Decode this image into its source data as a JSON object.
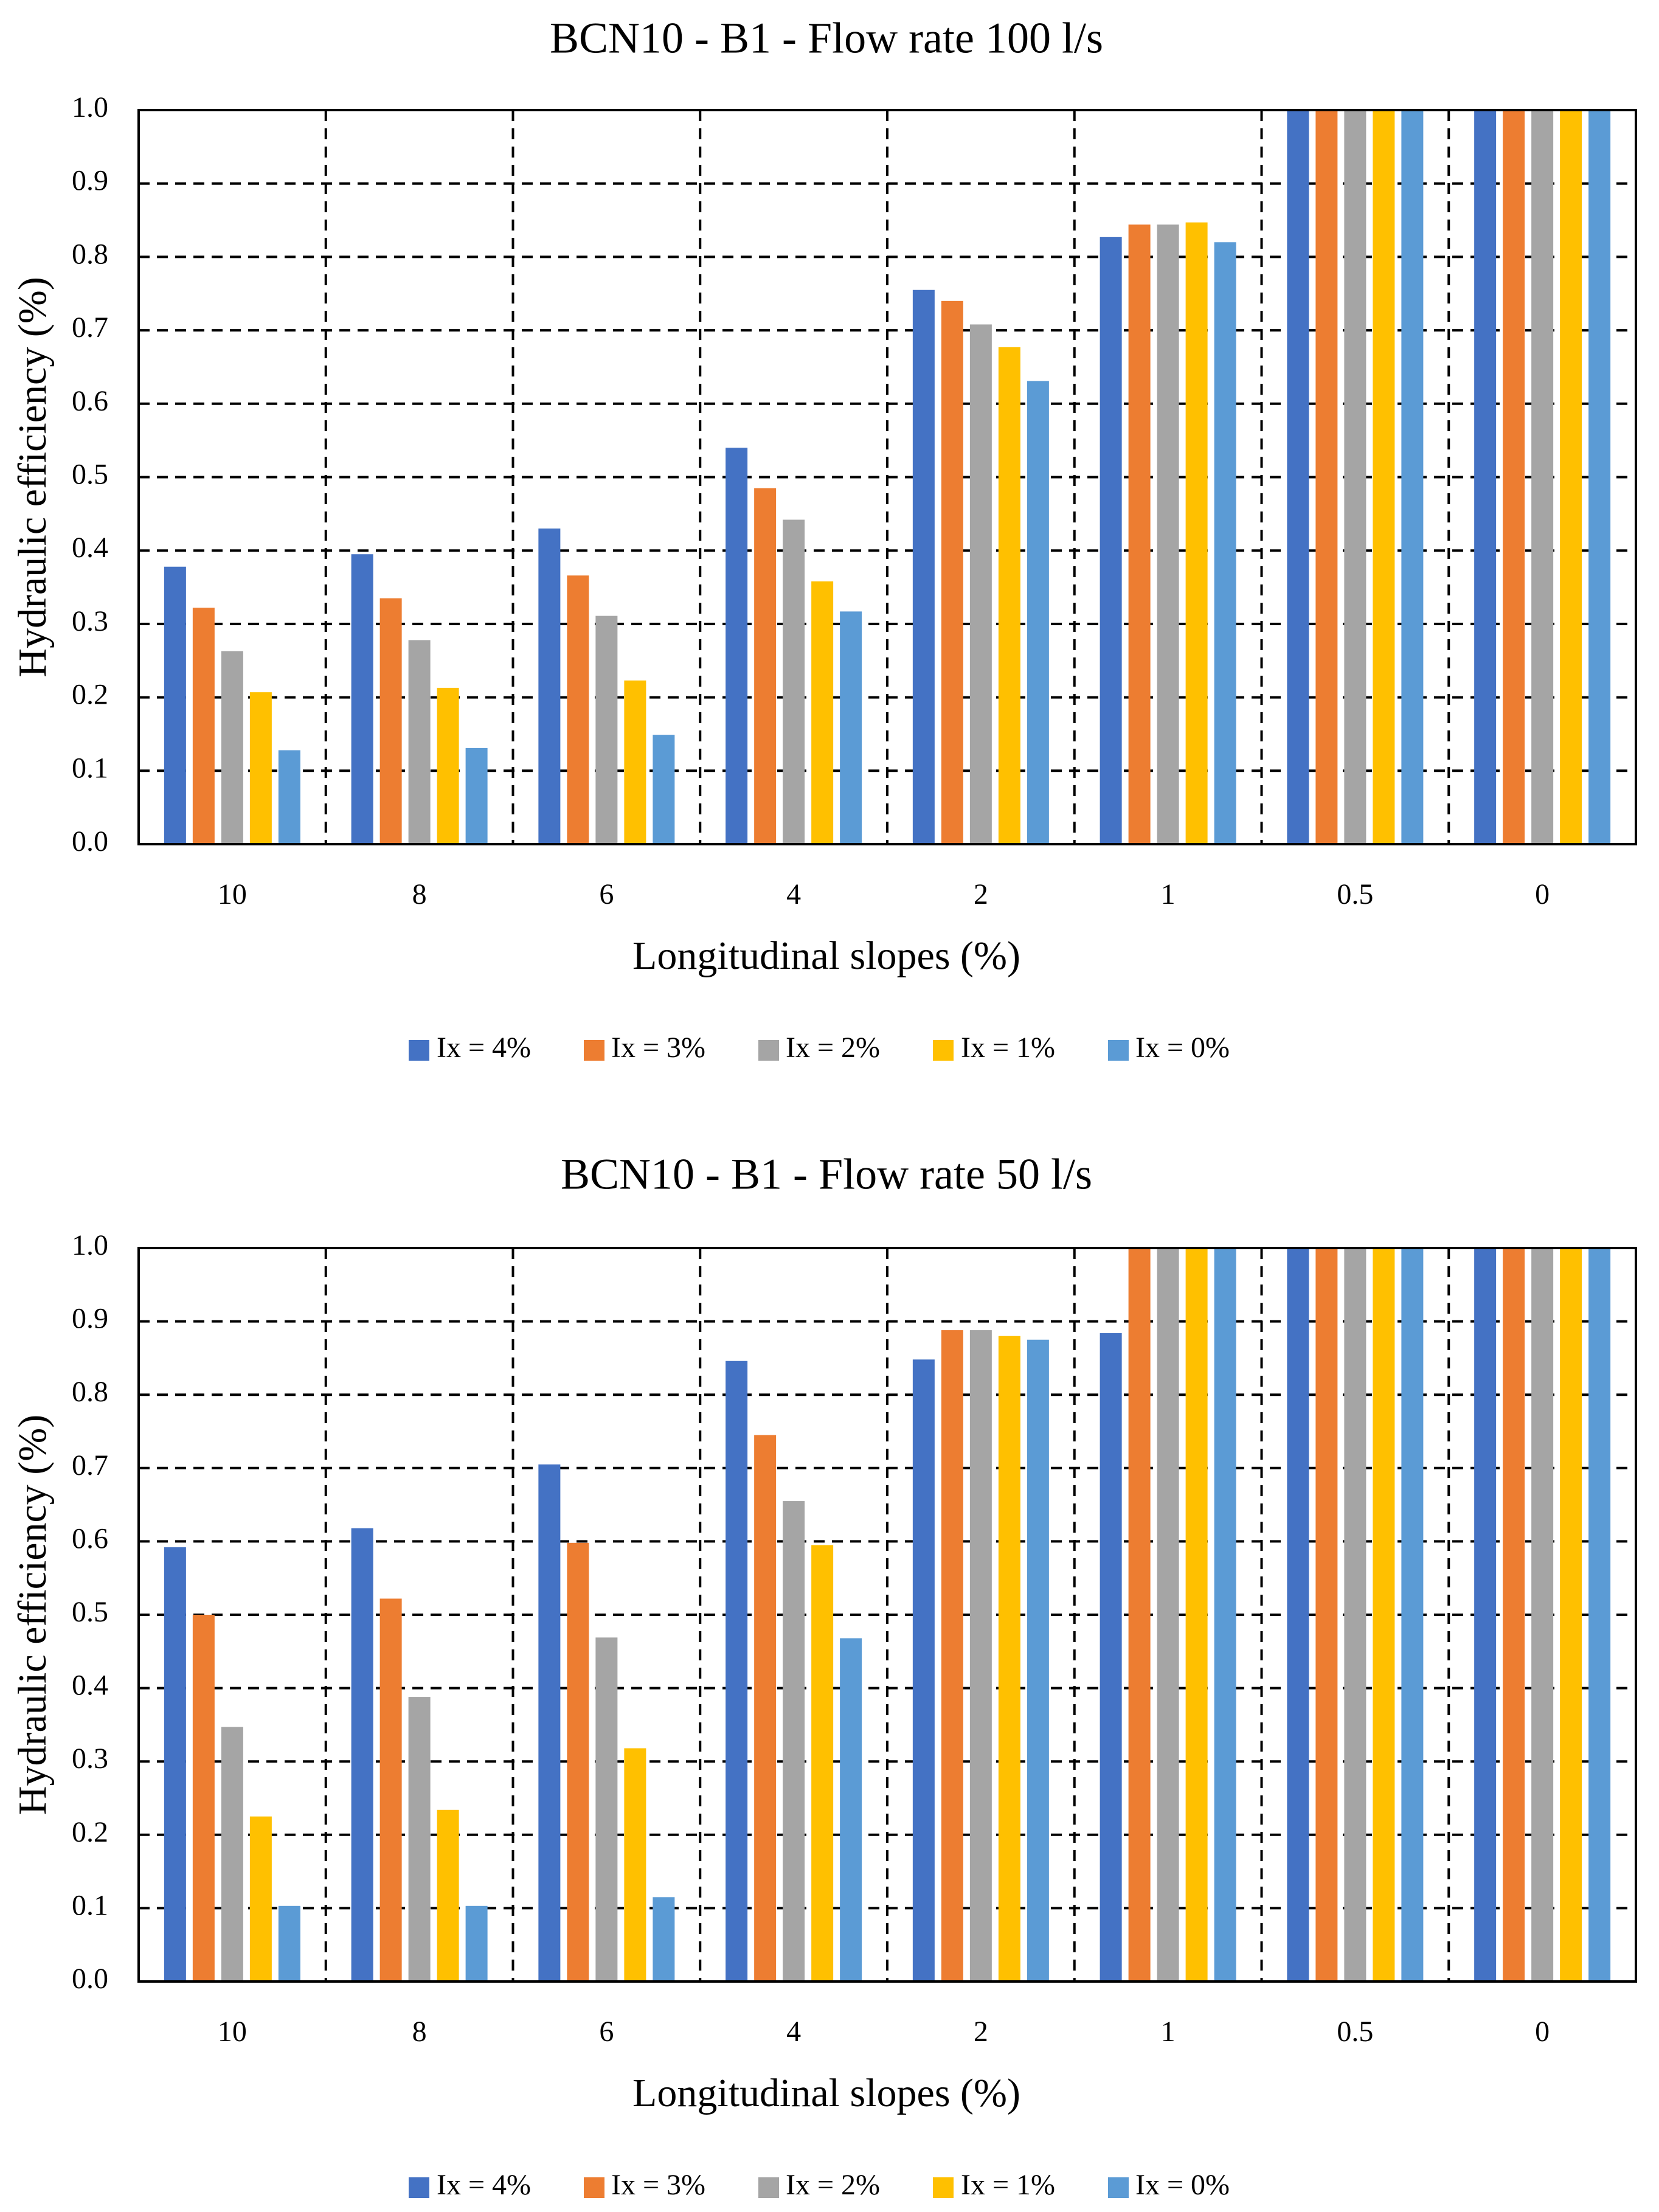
{
  "chart_data": [
    {
      "type": "bar",
      "title": "BCN10 - B1 - Flow rate 100 l/s",
      "xlabel": "Longitudinal slopes (%)",
      "ylabel": "Hydraulic efficiency  (%)",
      "ylim": [
        0,
        1.0
      ],
      "yticks": [
        "0.0",
        "0.1",
        "0.2",
        "0.3",
        "0.4",
        "0.5",
        "0.6",
        "0.7",
        "0.8",
        "0.9",
        "1.0"
      ],
      "grid": "dashed",
      "legend_position": "bottom",
      "categories": [
        "10",
        "8",
        "6",
        "4",
        "2",
        "1",
        "0.5",
        "0"
      ],
      "series": [
        {
          "name": "Ix = 4%",
          "color": "#4472c4",
          "values": [
            0.378,
            0.395,
            0.43,
            0.54,
            0.755,
            0.827,
            1.0,
            1.0
          ]
        },
        {
          "name": "Ix = 3%",
          "color": "#ed7d31",
          "values": [
            0.322,
            0.335,
            0.366,
            0.485,
            0.74,
            0.844,
            1.0,
            1.0
          ]
        },
        {
          "name": "Ix = 2%",
          "color": "#a5a5a5",
          "values": [
            0.263,
            0.278,
            0.311,
            0.442,
            0.708,
            0.844,
            1.0,
            1.0
          ]
        },
        {
          "name": "Ix = 1%",
          "color": "#ffc000",
          "values": [
            0.207,
            0.213,
            0.223,
            0.358,
            0.677,
            0.847,
            1.0,
            1.0
          ]
        },
        {
          "name": "Ix = 0%",
          "color": "#5b9bd5",
          "values": [
            0.128,
            0.131,
            0.149,
            0.317,
            0.631,
            0.82,
            1.0,
            1.0
          ]
        }
      ]
    },
    {
      "type": "bar",
      "title": "BCN10 - B1 - Flow rate 50 l/s",
      "xlabel": "Longitudinal slopes (%)",
      "ylabel": "Hydraulic efficiency  (%)",
      "ylim": [
        0,
        1.0
      ],
      "yticks": [
        "0.0",
        "0.1",
        "0.2",
        "0.3",
        "0.4",
        "0.5",
        "0.6",
        "0.7",
        "0.8",
        "0.9",
        "1.0"
      ],
      "grid": "dashed",
      "legend_position": "bottom",
      "categories": [
        "10",
        "8",
        "6",
        "4",
        "2",
        "1",
        "0.5",
        "0"
      ],
      "series": [
        {
          "name": "Ix = 4%",
          "color": "#4472c4",
          "values": [
            0.592,
            0.618,
            0.705,
            0.846,
            0.848,
            0.884,
            1.0,
            1.0
          ]
        },
        {
          "name": "Ix = 3%",
          "color": "#ed7d31",
          "values": [
            0.5,
            0.522,
            0.598,
            0.745,
            0.888,
            1.0,
            1.0,
            1.0
          ]
        },
        {
          "name": "Ix = 2%",
          "color": "#a5a5a5",
          "values": [
            0.347,
            0.388,
            0.469,
            0.655,
            0.888,
            1.0,
            1.0,
            1.0
          ]
        },
        {
          "name": "Ix = 1%",
          "color": "#ffc000",
          "values": [
            0.225,
            0.234,
            0.318,
            0.595,
            0.88,
            1.0,
            1.0,
            1.0
          ]
        },
        {
          "name": "Ix = 0%",
          "color": "#5b9bd5",
          "values": [
            0.103,
            0.103,
            0.115,
            0.468,
            0.875,
            1.0,
            1.0,
            1.0
          ]
        }
      ]
    }
  ]
}
